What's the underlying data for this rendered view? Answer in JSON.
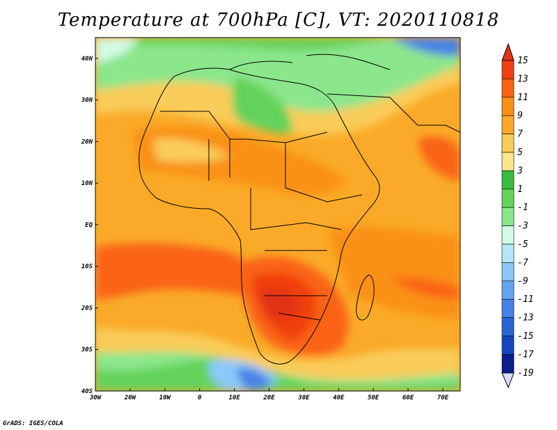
{
  "title": "Temperature at 700hPa [C], VT: 2020110818",
  "credit": "GrADS: IGES/COLA",
  "map": {
    "lon_range": [
      -30,
      75
    ],
    "lat_range": [
      -40,
      45
    ],
    "lon_ticks": [
      {
        "value": -30,
        "label": "30W"
      },
      {
        "value": -20,
        "label": "20W"
      },
      {
        "value": -10,
        "label": "10W"
      },
      {
        "value": 0,
        "label": "0"
      },
      {
        "value": 10,
        "label": "10E"
      },
      {
        "value": 20,
        "label": "20E"
      },
      {
        "value": 30,
        "label": "30E"
      },
      {
        "value": 40,
        "label": "40E"
      },
      {
        "value": 50,
        "label": "50E"
      },
      {
        "value": 60,
        "label": "60E"
      },
      {
        "value": 70,
        "label": "70E"
      }
    ],
    "lat_ticks": [
      {
        "value": 40,
        "label": "40N"
      },
      {
        "value": 30,
        "label": "30N"
      },
      {
        "value": 20,
        "label": "20N"
      },
      {
        "value": 10,
        "label": "10N"
      },
      {
        "value": 0,
        "label": "EQ"
      },
      {
        "value": -10,
        "label": "10S"
      },
      {
        "value": -20,
        "label": "20S"
      },
      {
        "value": -30,
        "label": "30S"
      },
      {
        "value": -40,
        "label": "40S"
      }
    ]
  },
  "colorbar": {
    "labels": [
      "15",
      "13",
      "11",
      "9",
      "7",
      "5",
      "3",
      "1",
      "-1",
      "-3",
      "-5",
      "-7",
      "-9",
      "-11",
      "-13",
      "-15",
      "-17",
      "-19"
    ],
    "colors": [
      "#f04010",
      "#fa6414",
      "#fa9114",
      "#faaa28",
      "#facc5a",
      "#fae68c",
      "#3cbc3c",
      "#64d25a",
      "#8ce68c",
      "#d2fae6",
      "#b4e6fa",
      "#8cc8fa",
      "#64a5f0",
      "#4682e6",
      "#2864d2",
      "#1446be",
      "#0a1e8c"
    ],
    "overflow_high": "#e13214",
    "underflow_low": "#dcdcfa"
  }
}
